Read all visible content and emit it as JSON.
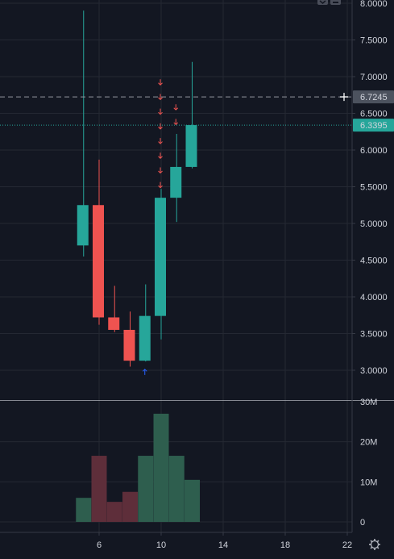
{
  "colors": {
    "background": "#131722",
    "grid": "#242833",
    "up": "#26a69a",
    "down": "#ef5350",
    "volume_up": "#2e5e4e",
    "volume_down": "#5e2e3a",
    "axis_text": "#d1d4dc",
    "crosshair_label": "#4c525e",
    "last_price_label": "#26a69a",
    "separator": "#d1d4dc"
  },
  "toolbar": {
    "icons": [
      "chevron-down-icon",
      "minimize-icon"
    ]
  },
  "settings_icon": "gear-icon",
  "chart_data": {
    "type": "candlestick",
    "price_axis": {
      "ticks": [
        "3.0000",
        "3.5000",
        "4.0000",
        "4.5000",
        "5.0000",
        "5.5000",
        "6.0000",
        "6.5000",
        "7.0000",
        "7.5000",
        "8.0000"
      ],
      "range": [
        2.6,
        8.05
      ]
    },
    "volume_axis": {
      "ticks": [
        "0",
        "10M",
        "20M",
        "30M"
      ],
      "range": [
        -1,
        30
      ]
    },
    "time_axis": {
      "ticks": [
        "6",
        "10",
        "14",
        "18",
        "22"
      ],
      "tick_x": [
        6,
        10,
        14,
        18,
        22
      ],
      "range": [
        2,
        23.6
      ]
    },
    "candles": [
      {
        "x": 5,
        "open": 4.7,
        "high": 7.9,
        "low": 4.55,
        "close": 5.25,
        "volume": 6
      },
      {
        "x": 6,
        "open": 5.25,
        "high": 5.87,
        "low": 3.62,
        "close": 3.72,
        "volume": 16.5
      },
      {
        "x": 7,
        "open": 3.72,
        "high": 4.15,
        "low": 3.52,
        "close": 3.55,
        "volume": 5
      },
      {
        "x": 8,
        "open": 3.55,
        "high": 3.8,
        "low": 3.05,
        "close": 3.13,
        "volume": 7.5
      },
      {
        "x": 9,
        "open": 3.13,
        "high": 4.17,
        "low": 3.12,
        "close": 3.74,
        "volume": 16.5
      },
      {
        "x": 10,
        "open": 3.74,
        "high": 5.47,
        "low": 3.42,
        "close": 5.35,
        "volume": 27
      },
      {
        "x": 11,
        "open": 5.35,
        "high": 6.22,
        "low": 5.02,
        "close": 5.77,
        "volume": 16.5
      },
      {
        "x": 12,
        "open": 5.77,
        "high": 7.2,
        "low": 5.75,
        "close": 6.34,
        "volume": 10.5
      }
    ],
    "sell_markers": [
      {
        "x": 10,
        "prices": [
          6.92,
          6.72,
          6.52,
          6.32,
          6.12,
          5.92,
          5.72,
          5.52
        ]
      },
      {
        "x": 11,
        "prices": [
          6.58,
          6.38
        ]
      }
    ],
    "buy_markers": [
      {
        "x": 9,
        "price": 2.98
      }
    ],
    "crosshair": {
      "price": 6.7245,
      "label": "6.7245"
    },
    "last_price": {
      "price": 6.3395,
      "label": "6.3395"
    }
  }
}
